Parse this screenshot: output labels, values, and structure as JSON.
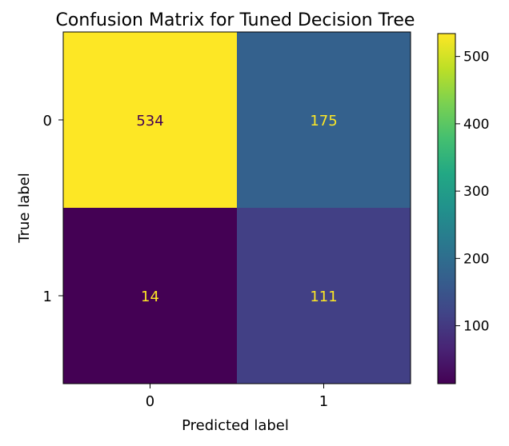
{
  "chart_data": {
    "type": "heatmap",
    "title": "Confusion Matrix for Tuned Decision Tree",
    "xlabel": "Predicted label",
    "ylabel": "True label",
    "x_ticks": [
      "0",
      "1"
    ],
    "y_ticks": [
      "0",
      "1"
    ],
    "matrix": [
      [
        534,
        175
      ],
      [
        14,
        111
      ]
    ],
    "colormap": "viridis",
    "colorbar": {
      "ticks": [
        100,
        200,
        300,
        400,
        500
      ],
      "min": 14,
      "max": 534
    },
    "grid": false
  }
}
